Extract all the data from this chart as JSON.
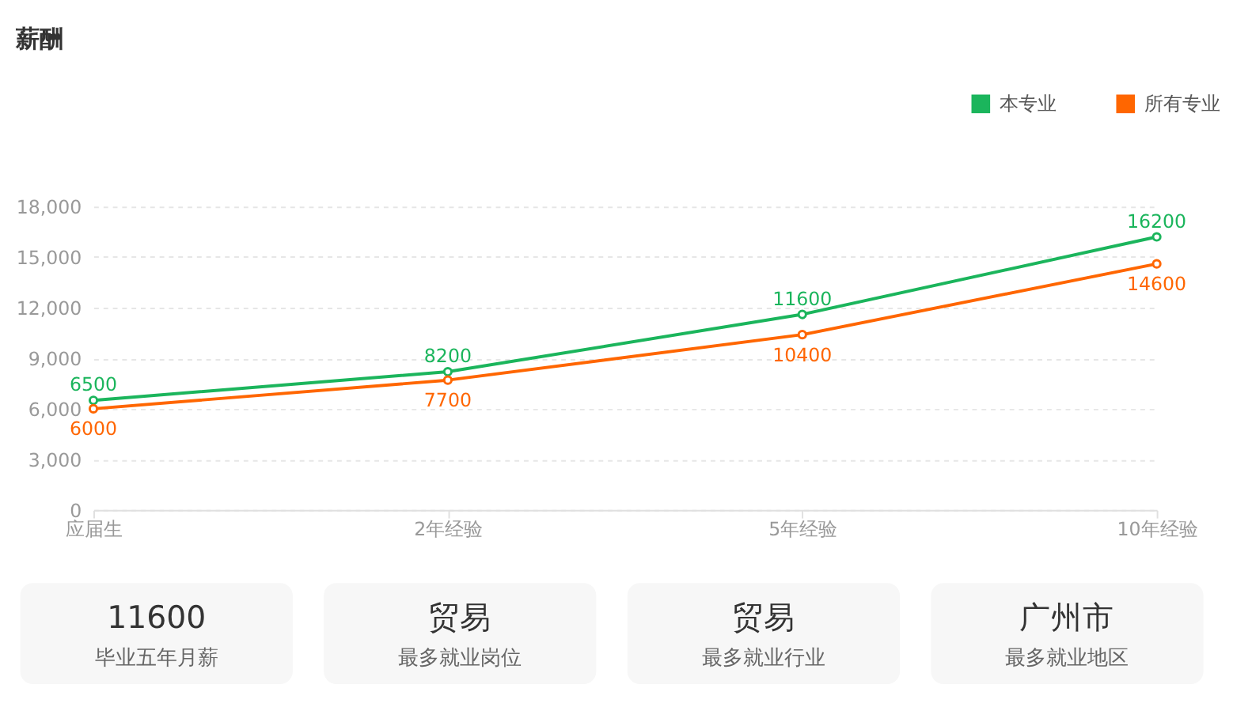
{
  "chart_data": [
    {
      "type": "line",
      "title": "薪酬",
      "categories": [
        "应届生",
        "2年经验",
        "5年经验",
        "10年经验"
      ],
      "series": [
        {
          "name": "本专业",
          "color": "#1bb55c",
          "values": [
            6500,
            8200,
            11600,
            16200
          ]
        },
        {
          "name": "所有专业",
          "color": "#ff6600",
          "values": [
            6000,
            7700,
            10400,
            14600
          ]
        }
      ],
      "ylim": [
        0,
        18000
      ],
      "yticks": [
        0,
        {
          "value": 3000,
          "label": "3,000"
        },
        {
          "value": 6000,
          "label": "6,000"
        },
        {
          "value": 9000,
          "label": "9,000"
        },
        {
          "value": 12000,
          "label": "12,000"
        },
        {
          "value": 15000,
          "label": "15,000"
        },
        {
          "value": 18000,
          "label": "18,000"
        }
      ],
      "grid": "y",
      "legend": "top right",
      "marker": "circle",
      "line_style": "solid",
      "data_labels": true
    },
    {
      "type": "other",
      "annotations": [
        "11600",
        "毕业五年月薪",
        "贸易",
        "最多就业岗位",
        "贸易",
        "最多就业行业",
        "广州市",
        "最多就业地区"
      ]
    }
  ]
}
